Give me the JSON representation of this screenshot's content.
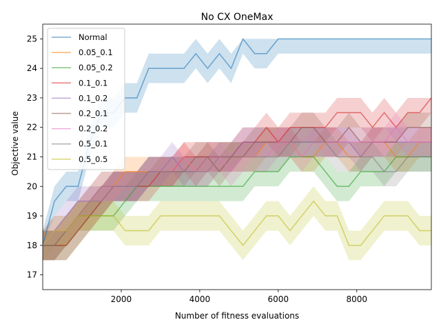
{
  "chart_data": {
    "type": "line",
    "title": "No CX OneMax",
    "xlabel": "Number of fitness evaluations",
    "ylabel": "Objective value",
    "xlim": [
      0,
      9900
    ],
    "ylim": [
      16.5,
      25.5
    ],
    "xticks": [
      2000,
      4000,
      6000,
      8000
    ],
    "yticks": [
      17,
      18,
      19,
      20,
      21,
      22,
      23,
      24,
      25
    ],
    "grid": false,
    "legend_position": "top-left",
    "x": [
      0,
      300,
      600,
      900,
      1200,
      1500,
      1800,
      2100,
      2400,
      2700,
      3000,
      3300,
      3600,
      3900,
      4200,
      4500,
      4800,
      5100,
      5400,
      5700,
      6000,
      6300,
      6600,
      6900,
      7200,
      7500,
      7800,
      8100,
      8400,
      8700,
      9000,
      9300,
      9600,
      9900
    ],
    "series": [
      {
        "name": "Normal",
        "color": "#1f77b4",
        "values": [
          18,
          19.5,
          20,
          20,
          21.5,
          22.5,
          22.5,
          23,
          23,
          24,
          24,
          24,
          24,
          24.5,
          24,
          24.5,
          24,
          25,
          24.5,
          24.5,
          25,
          25,
          25,
          25,
          25,
          25,
          25,
          25,
          25,
          25,
          25,
          25,
          25,
          25
        ],
        "lower": [
          18,
          19,
          19.5,
          19.5,
          21,
          22,
          22,
          22.5,
          22.5,
          23.5,
          23.5,
          23.5,
          23.5,
          24,
          23.5,
          24,
          23.5,
          24.5,
          24,
          24,
          24.5,
          24.5,
          24.5,
          24.5,
          24.5,
          24.5,
          24.5,
          24.5,
          24.5,
          24.5,
          24.5,
          24.5,
          24.5,
          24.5
        ],
        "upper": [
          18.5,
          20,
          20.5,
          20.5,
          22,
          23,
          23,
          23.5,
          23.5,
          24.5,
          24.5,
          24.5,
          24.5,
          25,
          24.5,
          25,
          24.5,
          25,
          25,
          25,
          25,
          25,
          25,
          25,
          25,
          25,
          25,
          25,
          25,
          25,
          25,
          25,
          25,
          25
        ]
      },
      {
        "name": "0.05_0.1",
        "color": "#ff7f0e",
        "values": [
          18,
          18,
          18.5,
          19,
          19.5,
          20,
          20,
          20.5,
          20.5,
          20.5,
          20.5,
          20.5,
          21,
          20.5,
          21,
          21,
          21,
          21,
          21,
          21.5,
          21.5,
          21.5,
          21,
          21,
          21.5,
          21.5,
          21,
          21,
          21.5,
          21.5,
          21,
          21,
          21.5,
          21.5
        ],
        "lower": [
          17.5,
          17.5,
          18,
          18.5,
          19,
          19.5,
          19.5,
          20,
          20,
          20,
          20,
          20,
          20.5,
          20,
          20.5,
          20.5,
          20.5,
          20.5,
          20.5,
          21,
          21,
          21,
          20.5,
          20.5,
          21,
          21,
          20.5,
          20.5,
          21,
          21,
          20.5,
          20.5,
          21,
          21
        ],
        "upper": [
          18.5,
          18.5,
          19,
          19.5,
          20,
          20.5,
          20.5,
          21,
          21,
          21,
          21,
          21,
          21.5,
          21,
          21.5,
          21.5,
          21.5,
          21.5,
          21.5,
          22,
          22,
          22,
          21.5,
          21.5,
          22,
          22,
          21.5,
          21.5,
          22,
          22,
          21.5,
          21.5,
          22,
          22
        ]
      },
      {
        "name": "0.05_0.2",
        "color": "#2ca02c",
        "values": [
          18,
          18,
          18,
          18.5,
          19,
          19,
          19,
          19.5,
          20,
          20,
          20,
          20,
          20,
          20,
          20,
          20,
          20,
          20,
          20.5,
          20.5,
          20.5,
          21,
          21,
          21,
          20.5,
          20,
          20,
          20.5,
          20.5,
          20.5,
          21,
          21,
          21,
          21
        ],
        "lower": [
          17.5,
          17.5,
          17.5,
          18,
          18.5,
          18.5,
          18.5,
          19,
          19.5,
          19.5,
          19.5,
          19.5,
          19.5,
          19.5,
          19.5,
          19.5,
          19.5,
          19.5,
          20,
          20,
          20,
          20.5,
          20.5,
          20.5,
          20,
          19.5,
          19.5,
          20,
          20,
          20,
          20.5,
          20.5,
          20.5,
          20.5
        ],
        "upper": [
          18.5,
          18.5,
          18.5,
          19,
          19.5,
          19.5,
          19.5,
          20,
          20.5,
          20.5,
          20.5,
          20.5,
          20.5,
          20.5,
          20.5,
          20.5,
          20.5,
          20.5,
          21,
          21,
          21,
          21.5,
          21.5,
          21.5,
          21,
          20.5,
          20.5,
          21,
          21,
          21,
          21.5,
          21.5,
          21.5,
          21.5
        ]
      },
      {
        "name": "0.1_0.1",
        "color": "#d62728",
        "values": [
          18,
          18,
          18,
          18.5,
          19,
          19.5,
          20,
          20,
          20,
          20,
          20.5,
          20.5,
          21,
          21,
          21,
          21,
          21,
          21.5,
          21.5,
          22,
          21.5,
          22,
          22,
          22,
          22,
          22.5,
          22.5,
          22.5,
          22,
          22.5,
          22,
          22.5,
          22.5,
          23
        ],
        "lower": [
          17.5,
          17.5,
          17.5,
          18,
          18.5,
          19,
          19.5,
          19.5,
          19.5,
          19.5,
          20,
          20,
          20.5,
          20.5,
          20.5,
          20.5,
          20.5,
          21,
          21,
          21.5,
          21,
          21.5,
          21.5,
          21.5,
          21.5,
          22,
          22,
          22,
          21.5,
          22,
          21.5,
          22,
          22,
          22.5
        ],
        "upper": [
          18.5,
          18.5,
          18.5,
          19,
          19.5,
          20,
          20.5,
          20.5,
          20.5,
          20.5,
          21,
          21,
          21.5,
          21.5,
          21.5,
          21.5,
          21.5,
          22,
          22,
          22.5,
          22,
          22.5,
          22.5,
          22.5,
          22.5,
          23,
          23,
          23,
          22.5,
          23,
          22.5,
          23,
          23,
          23
        ]
      },
      {
        "name": "0.1_0.2",
        "color": "#9467bd",
        "values": [
          18,
          18.5,
          19,
          19.5,
          19.5,
          20,
          20,
          20,
          20,
          20.5,
          20.5,
          21,
          20.5,
          20.5,
          21,
          21,
          21,
          21.5,
          21.5,
          21.5,
          21.5,
          21.5,
          21.5,
          21.5,
          21.5,
          21.5,
          21.5,
          21,
          21.5,
          21.5,
          21.5,
          21.5,
          21.5,
          21.5
        ],
        "lower": [
          17.5,
          18,
          18.5,
          19,
          19,
          19.5,
          19.5,
          19.5,
          19.5,
          20,
          20,
          20.5,
          20,
          20,
          20.5,
          20.5,
          20.5,
          21,
          21,
          21,
          21,
          21,
          21,
          21,
          21,
          21,
          21,
          20.5,
          21,
          21,
          21,
          21,
          21,
          21
        ],
        "upper": [
          18.5,
          19,
          19.5,
          20,
          20,
          20.5,
          20.5,
          20.5,
          20.5,
          21,
          21,
          21.5,
          21,
          21,
          21.5,
          21.5,
          21.5,
          22,
          22,
          22,
          22,
          22,
          22,
          22,
          22,
          22,
          22,
          21.5,
          22,
          22,
          22,
          22,
          22,
          22
        ]
      },
      {
        "name": "0.2_0.1",
        "color": "#8c564b",
        "values": [
          18,
          18,
          18.5,
          19,
          19,
          19.5,
          20,
          20,
          20,
          20.5,
          20.5,
          20.5,
          20.5,
          21,
          21,
          20.5,
          21,
          21,
          21.5,
          21.5,
          21.5,
          21.5,
          22,
          22,
          21.5,
          21.5,
          22,
          21.5,
          21.5,
          21.5,
          21.5,
          22,
          22,
          22
        ],
        "lower": [
          17.5,
          17.5,
          18,
          18.5,
          18.5,
          19,
          19.5,
          19.5,
          19.5,
          20,
          20,
          20,
          20,
          20.5,
          20.5,
          20,
          20.5,
          20.5,
          21,
          21,
          21,
          21,
          21.5,
          21.5,
          21,
          21,
          21.5,
          21,
          21,
          21,
          21,
          21.5,
          21.5,
          21.5
        ],
        "upper": [
          18.5,
          18.5,
          19,
          19.5,
          19.5,
          20,
          20.5,
          20.5,
          20.5,
          21,
          21,
          21,
          21,
          21.5,
          21.5,
          21,
          21.5,
          21.5,
          22,
          22,
          22,
          22,
          22.5,
          22.5,
          22,
          22,
          22.5,
          22,
          22,
          22,
          22,
          22.5,
          22.5,
          22.5
        ]
      },
      {
        "name": "0.2_0.2",
        "color": "#e377c2",
        "values": [
          18,
          18.5,
          18.5,
          19,
          19.5,
          19.5,
          20,
          20,
          20,
          20.5,
          20.5,
          20.5,
          21,
          20.5,
          20.5,
          21,
          20.5,
          21,
          21,
          21,
          21.5,
          21.5,
          21,
          21.5,
          21.5,
          21.5,
          21.5,
          21.5,
          21.5,
          21.5,
          22,
          21.5,
          21.5,
          21.5
        ],
        "lower": [
          17.5,
          18,
          18,
          18.5,
          19,
          19,
          19.5,
          19.5,
          19.5,
          20,
          20,
          20,
          20.5,
          20,
          20,
          20.5,
          20,
          20.5,
          20.5,
          20.5,
          21,
          21,
          20.5,
          21,
          21,
          21,
          21,
          21,
          21,
          21,
          21.5,
          21,
          21,
          21
        ],
        "upper": [
          18.5,
          19,
          19,
          19.5,
          20,
          20,
          20.5,
          20.5,
          20.5,
          21,
          21,
          21,
          21.5,
          21,
          21,
          21.5,
          21,
          21.5,
          21.5,
          21.5,
          22,
          22,
          21.5,
          22,
          22,
          22,
          22,
          22,
          22,
          22,
          22.5,
          22,
          22,
          22
        ]
      },
      {
        "name": "0.5_0.1",
        "color": "#7f7f7f",
        "values": [
          18,
          18,
          18.5,
          19,
          19.5,
          19.5,
          20,
          20,
          20,
          20.5,
          20.5,
          20.5,
          20.5,
          20.5,
          20.5,
          21,
          21,
          21,
          21,
          21,
          21,
          21.5,
          21.5,
          21.5,
          21.5,
          21,
          21,
          21,
          21,
          20.5,
          20.5,
          21,
          21,
          21
        ],
        "lower": [
          17.5,
          17.5,
          18,
          18.5,
          19,
          19,
          19.5,
          19.5,
          19.5,
          20,
          20,
          20,
          20,
          20,
          20,
          20.5,
          20.5,
          20.5,
          20.5,
          20.5,
          20.5,
          21,
          21,
          21,
          21,
          20.5,
          20.5,
          20.5,
          20.5,
          20,
          20,
          20.5,
          20.5,
          20.5
        ],
        "upper": [
          18.5,
          18.5,
          19,
          19.5,
          20,
          20,
          20.5,
          20.5,
          20.5,
          21,
          21,
          21,
          21,
          21,
          21,
          21.5,
          21.5,
          21.5,
          21.5,
          21.5,
          21.5,
          22,
          22,
          22,
          22,
          21.5,
          21.5,
          21.5,
          21.5,
          21,
          21,
          21.5,
          21.5,
          21.5
        ]
      },
      {
        "name": "0.5_0.5",
        "color": "#bcbd22",
        "values": [
          18,
          18.5,
          18.5,
          19,
          19,
          19,
          19,
          18.5,
          18.5,
          18.5,
          19,
          19,
          19,
          19,
          19,
          19,
          18.5,
          18,
          18.5,
          19,
          19,
          18.5,
          19,
          19.5,
          19,
          19,
          18,
          18,
          18.5,
          19,
          19,
          19,
          18.5,
          18.5
        ],
        "lower": [
          17.5,
          18,
          18,
          18.5,
          18.5,
          18.5,
          18.5,
          18,
          18,
          18,
          18.5,
          18.5,
          18.5,
          18.5,
          18.5,
          18.5,
          18,
          17.5,
          18,
          18.5,
          18.5,
          18,
          18.5,
          19,
          18.5,
          18.5,
          17.5,
          17.5,
          18,
          18.5,
          18.5,
          18.5,
          18,
          18
        ],
        "upper": [
          18.5,
          19,
          19,
          19.5,
          19.5,
          19.5,
          19.5,
          19,
          19,
          19,
          19.5,
          19.5,
          19.5,
          19.5,
          19.5,
          19.5,
          19,
          18.5,
          19,
          19.5,
          19.5,
          19,
          19.5,
          20,
          19.5,
          19.5,
          18.5,
          18.5,
          19,
          19.5,
          19.5,
          19.5,
          19,
          19
        ]
      }
    ]
  }
}
